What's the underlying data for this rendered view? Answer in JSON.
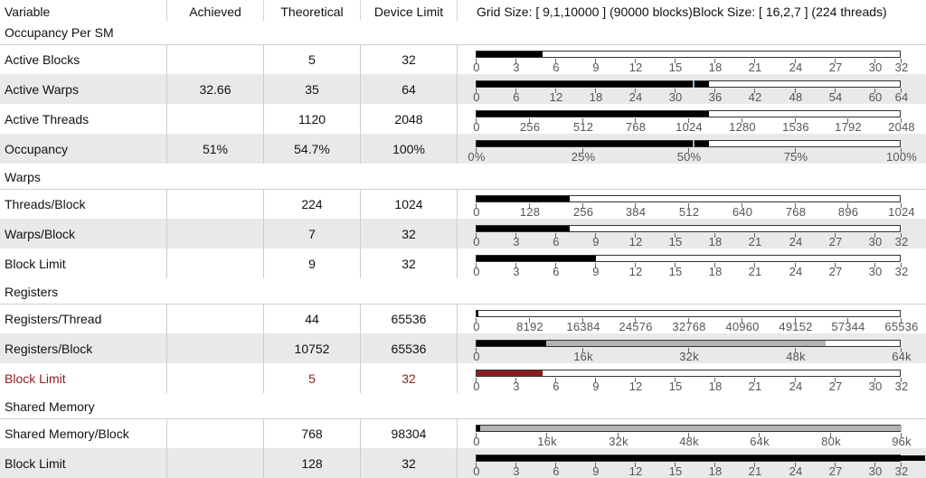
{
  "header": {
    "col_variable": "Variable",
    "col_achieved": "Achieved",
    "col_theoretical": "Theoretical",
    "col_device_limit": "Device Limit",
    "grid_info": "Grid Size: [ 9,1,10000 ] (90000 blocks)Block Size: [ 16,2,7 ] (224 threads)"
  },
  "sections": [
    {
      "title": "Occupancy Per SM",
      "rows": [
        {
          "label": "Active Blocks",
          "achieved": "",
          "theoretical": "5",
          "device": "32",
          "bar": {
            "max": 32,
            "fill": 5,
            "ticks": [
              "0",
              "3",
              "6",
              "9",
              "12",
              "15",
              "18",
              "21",
              "24",
              "27",
              "30",
              "32"
            ]
          }
        },
        {
          "label": "Active Warps",
          "achieved": "32.66",
          "theoretical": "35",
          "device": "64",
          "bar": {
            "max": 64,
            "fill": 35,
            "marker": 32.66,
            "ticks": [
              "0",
              "6",
              "12",
              "18",
              "24",
              "30",
              "36",
              "42",
              "48",
              "54",
              "60",
              "64"
            ]
          }
        },
        {
          "label": "Active Threads",
          "achieved": "",
          "theoretical": "1120",
          "device": "2048",
          "bar": {
            "max": 2048,
            "fill": 1120,
            "ticks": [
              "0",
              "256",
              "512",
              "768",
              "1024",
              "1280",
              "1536",
              "1792",
              "2048"
            ]
          }
        },
        {
          "label": "Occupancy",
          "achieved": "51%",
          "theoretical": "54.7%",
          "device": "100%",
          "bar": {
            "max": 100,
            "fill": 54.7,
            "marker": 51,
            "ticks": [
              "0%",
              "25%",
              "50%",
              "75%",
              "100%"
            ]
          }
        }
      ]
    },
    {
      "title": "Warps",
      "rows": [
        {
          "label": "Threads/Block",
          "achieved": "",
          "theoretical": "224",
          "device": "1024",
          "bar": {
            "max": 1024,
            "fill": 224,
            "ticks": [
              "0",
              "128",
              "256",
              "384",
              "512",
              "640",
              "768",
              "896",
              "1024"
            ]
          }
        },
        {
          "label": "Warps/Block",
          "achieved": "",
          "theoretical": "7",
          "device": "32",
          "bar": {
            "max": 32,
            "fill": 7,
            "ticks": [
              "0",
              "3",
              "6",
              "9",
              "12",
              "15",
              "18",
              "21",
              "24",
              "27",
              "30",
              "32"
            ]
          }
        },
        {
          "label": "Block Limit",
          "achieved": "",
          "theoretical": "9",
          "device": "32",
          "bar": {
            "max": 32,
            "fill": 9,
            "ticks": [
              "0",
              "3",
              "6",
              "9",
              "12",
              "15",
              "18",
              "21",
              "24",
              "27",
              "30",
              "32"
            ]
          }
        }
      ]
    },
    {
      "title": "Registers",
      "rows": [
        {
          "label": "Registers/Thread",
          "achieved": "",
          "theoretical": "44",
          "device": "65536",
          "bar": {
            "max": 65536,
            "fill": 44,
            "ticks": [
              "0",
              "8192",
              "16384",
              "24576",
              "32768",
              "40960",
              "49152",
              "57344",
              "65536"
            ]
          }
        },
        {
          "label": "Registers/Block",
          "achieved": "",
          "theoretical": "10752",
          "device": "65536",
          "bar": {
            "max": 65536,
            "fill": 10752,
            "gray_to": 53760,
            "ticks": [
              "0",
              "16k",
              "32k",
              "48k",
              "64k"
            ]
          }
        },
        {
          "label": "Block Limit",
          "achieved": "",
          "theoretical": "5",
          "device": "32",
          "limiter": true,
          "fill_color": "#8c1d1d",
          "bar": {
            "max": 32,
            "fill": 5,
            "ticks": [
              "0",
              "3",
              "6",
              "9",
              "12",
              "15",
              "18",
              "21",
              "24",
              "27",
              "30",
              "32"
            ]
          }
        }
      ]
    },
    {
      "title": "Shared Memory",
      "rows": [
        {
          "label": "Shared Memory/Block",
          "achieved": "",
          "theoretical": "768",
          "device": "98304",
          "bar": {
            "max": 98304,
            "fill": 768,
            "gray_to": 98304,
            "ticks": [
              "0",
              "16k",
              "32k",
              "48k",
              "64k",
              "80k",
              "96k"
            ]
          }
        },
        {
          "label": "Block Limit",
          "achieved": "",
          "theoretical": "128",
          "device": "32",
          "bar": {
            "max": 32,
            "fill": 32,
            "overflow": true,
            "ticks": [
              "0",
              "3",
              "6",
              "9",
              "12",
              "15",
              "18",
              "21",
              "24",
              "27",
              "30",
              "32"
            ]
          }
        }
      ]
    }
  ],
  "colors": {
    "limiter_red": "#8c1d1d",
    "achieved_marker": "#8ab4d6",
    "alt_row": "#e9e9e9"
  }
}
